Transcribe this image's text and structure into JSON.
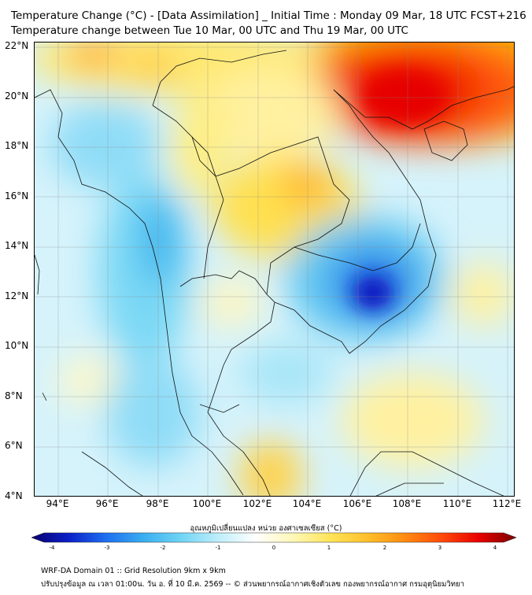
{
  "title": {
    "line1": "Temperature Change (°C) - [Data Assimilation] _ Initial Time : Monday 09 Mar, 18 UTC FCST+216",
    "line2": "Temperature change between Tue 10 Mar, 00 UTC and Thu 19 Mar, 00 UTC"
  },
  "map": {
    "lat_labels": [
      "22°N",
      "20°N",
      "18°N",
      "16°N",
      "14°N",
      "12°N",
      "10°N",
      "8°N",
      "6°N",
      "4°N"
    ],
    "lon_labels": [
      "94°E",
      "96°E",
      "98°E",
      "100°E",
      "102°E",
      "104°E",
      "106°E",
      "108°E",
      "110°E",
      "112°E"
    ]
  },
  "colorbar": {
    "title": "อุณหภูมิเปลี่ยนแปลง หน่วย องศาเซลเซียส (°C)",
    "min": -4,
    "max": 4,
    "ticks": [
      "-4",
      "-3",
      "-2",
      "-1",
      "0",
      "1",
      "2",
      "3",
      "4"
    ],
    "colors": [
      "#08006e",
      "#0b1fc8",
      "#1e6ff0",
      "#3aaef0",
      "#6fd4f5",
      "#bdeefa",
      "#ffffff",
      "#fff8b8",
      "#ffe45a",
      "#ffc02a",
      "#ff8c10",
      "#ff4a0a",
      "#e80000",
      "#7a0000"
    ]
  },
  "footer": {
    "line1": "WRF-DA Domain 01 :: Grid Resolution 9km x 9km",
    "line2": "ปรับปรุงข้อมูล ณ เวลา 01:00น. วัน อ. ที่ 10 มี.ค. 2569 -- © ส่วนพยากรณ์อากาศเชิงตัวเลข กองพยากรณ์อากาศ กรมอุตุนิยมวิทยา"
  }
}
